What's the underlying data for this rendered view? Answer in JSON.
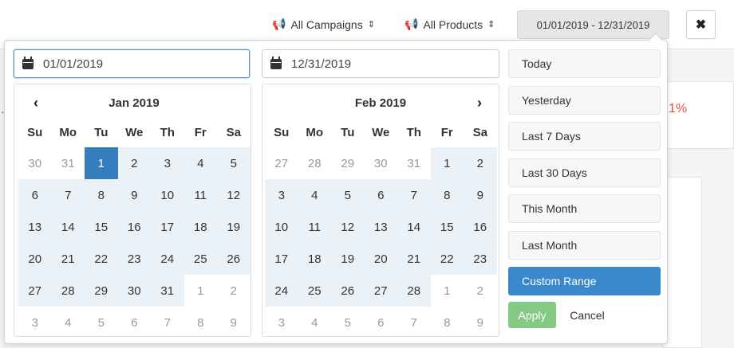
{
  "header": {
    "campaigns_label": "All Campaigns",
    "products_label": "All Products",
    "date_range_label": "01/01/2019 - 12/31/2019",
    "close_symbol": "✖",
    "filter_icon": "bullhorn-icon"
  },
  "background": {
    "percent_fragment": "1%"
  },
  "picker": {
    "start_date": "01/01/2019",
    "end_date": "12/31/2019",
    "prev_symbol": "‹",
    "next_symbol": "›",
    "weekdays": [
      "Su",
      "Mo",
      "Tu",
      "We",
      "Th",
      "Fr",
      "Sa"
    ],
    "left_calendar": {
      "month": "Jan 2019",
      "days": [
        [
          "30",
          "off"
        ],
        [
          "31",
          "off"
        ],
        [
          "1",
          "sel"
        ],
        [
          "2",
          "in"
        ],
        [
          "3",
          "in"
        ],
        [
          "4",
          "in"
        ],
        [
          "5",
          "in"
        ],
        [
          "6",
          "in"
        ],
        [
          "7",
          "in"
        ],
        [
          "8",
          "in"
        ],
        [
          "9",
          "in"
        ],
        [
          "10",
          "in"
        ],
        [
          "11",
          "in"
        ],
        [
          "12",
          "in"
        ],
        [
          "13",
          "in"
        ],
        [
          "14",
          "in"
        ],
        [
          "15",
          "in"
        ],
        [
          "16",
          "in"
        ],
        [
          "17",
          "in"
        ],
        [
          "18",
          "in"
        ],
        [
          "19",
          "in"
        ],
        [
          "20",
          "in"
        ],
        [
          "21",
          "in"
        ],
        [
          "22",
          "in"
        ],
        [
          "23",
          "in"
        ],
        [
          "24",
          "in"
        ],
        [
          "25",
          "in"
        ],
        [
          "26",
          "in"
        ],
        [
          "27",
          "in"
        ],
        [
          "28",
          "in"
        ],
        [
          "29",
          "in"
        ],
        [
          "30",
          "in"
        ],
        [
          "31",
          "in"
        ],
        [
          "1",
          "off"
        ],
        [
          "2",
          "off"
        ],
        [
          "3",
          "off"
        ],
        [
          "4",
          "off"
        ],
        [
          "5",
          "off"
        ],
        [
          "6",
          "off"
        ],
        [
          "7",
          "off"
        ],
        [
          "8",
          "off"
        ],
        [
          "9",
          "off"
        ]
      ]
    },
    "right_calendar": {
      "month": "Feb 2019",
      "days": [
        [
          "27",
          "off"
        ],
        [
          "28",
          "off"
        ],
        [
          "29",
          "off"
        ],
        [
          "30",
          "off"
        ],
        [
          "31",
          "off"
        ],
        [
          "1",
          "in"
        ],
        [
          "2",
          "in"
        ],
        [
          "3",
          "in"
        ],
        [
          "4",
          "in"
        ],
        [
          "5",
          "in"
        ],
        [
          "6",
          "in"
        ],
        [
          "7",
          "in"
        ],
        [
          "8",
          "in"
        ],
        [
          "9",
          "in"
        ],
        [
          "10",
          "in"
        ],
        [
          "11",
          "in"
        ],
        [
          "12",
          "in"
        ],
        [
          "13",
          "in"
        ],
        [
          "14",
          "in"
        ],
        [
          "15",
          "in"
        ],
        [
          "16",
          "in"
        ],
        [
          "17",
          "in"
        ],
        [
          "18",
          "in"
        ],
        [
          "19",
          "in"
        ],
        [
          "20",
          "in"
        ],
        [
          "21",
          "in"
        ],
        [
          "22",
          "in"
        ],
        [
          "23",
          "in"
        ],
        [
          "24",
          "in"
        ],
        [
          "25",
          "in"
        ],
        [
          "26",
          "in"
        ],
        [
          "27",
          "in"
        ],
        [
          "28",
          "in"
        ],
        [
          "1",
          "off"
        ],
        [
          "2",
          "off"
        ],
        [
          "3",
          "off"
        ],
        [
          "4",
          "off"
        ],
        [
          "5",
          "off"
        ],
        [
          "6",
          "off"
        ],
        [
          "7",
          "off"
        ],
        [
          "8",
          "off"
        ],
        [
          "9",
          "off"
        ]
      ]
    },
    "ranges": [
      {
        "label": "Today",
        "active": false
      },
      {
        "label": "Yesterday",
        "active": false
      },
      {
        "label": "Last 7 Days",
        "active": false
      },
      {
        "label": "Last 30 Days",
        "active": false
      },
      {
        "label": "This Month",
        "active": false
      },
      {
        "label": "Last Month",
        "active": false
      },
      {
        "label": "Custom Range",
        "active": true
      }
    ],
    "apply_label": "Apply",
    "cancel_label": "Cancel"
  },
  "colors": {
    "accent": "#3a89cc",
    "selected_day": "#357ebd",
    "range_highlight": "#ebf2f7",
    "apply": "#5cb85c",
    "negative": "#e0523a"
  }
}
